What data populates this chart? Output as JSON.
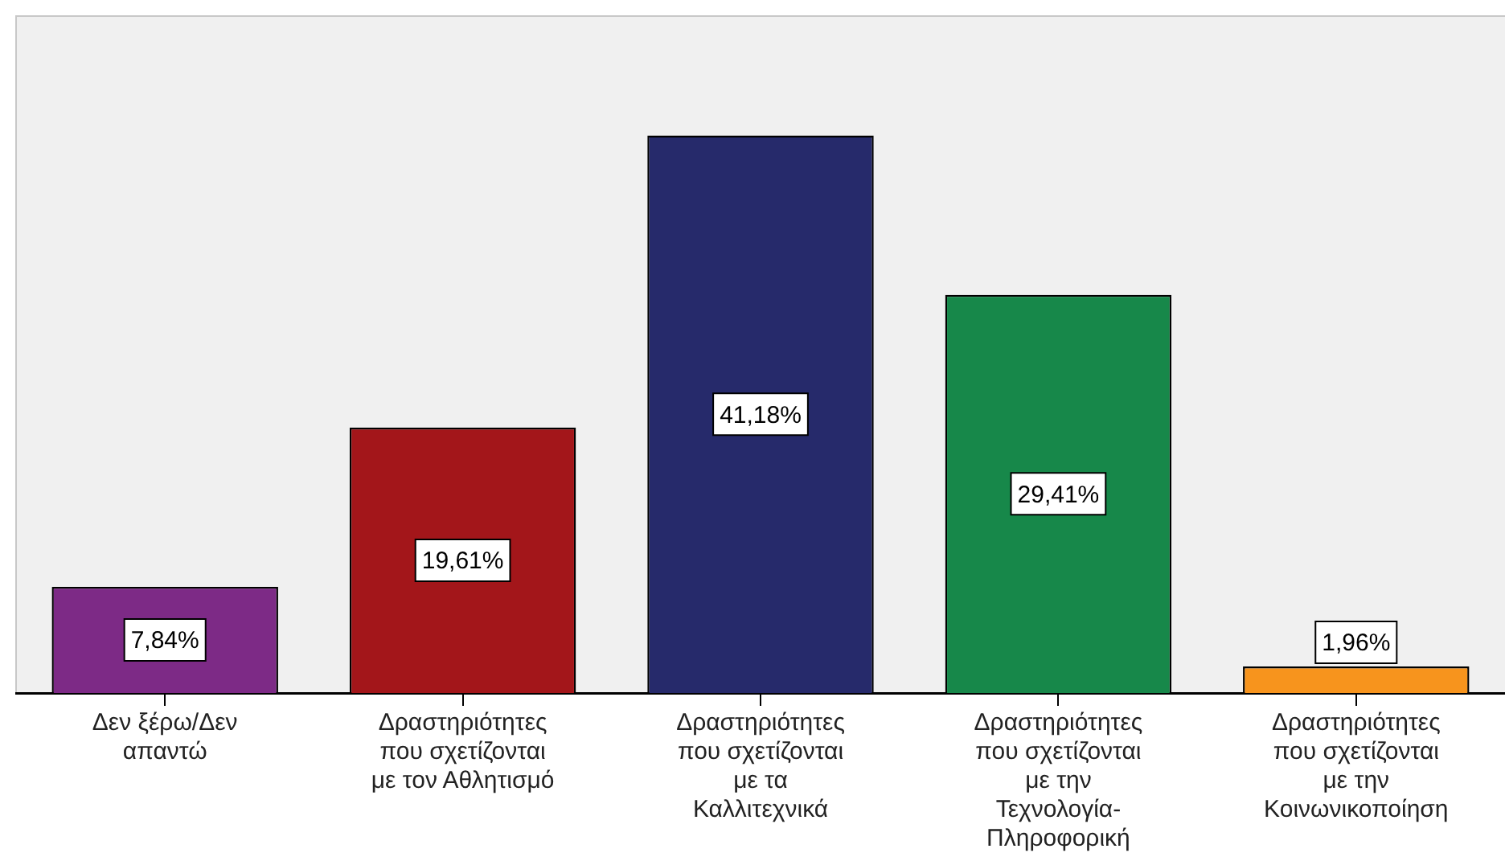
{
  "chart_data": {
    "type": "bar",
    "categories": [
      "Δεν ξέρω/Δεν απαντώ",
      "Δραστηριότητες που σχετίζονται με τον Αθλητισμό",
      "Δραστηριότητες που σχετίζονται με τα Καλλιτεχνικά",
      "Δραστηριότητες που σχετίζονται με την Τεχνολογία-Πληροφορική",
      "Δραστηριότητες που σχετίζονται με την Κοινωνικοποίηση"
    ],
    "values": [
      7.84,
      19.61,
      41.18,
      29.41,
      1.96
    ],
    "colors": [
      "#7d2a86",
      "#a3161a",
      "#262a6b",
      "#17884a",
      "#f7941d"
    ],
    "value_labels": [
      "7,84%",
      "19,61%",
      "41,18%",
      "29,41%",
      "1,96%"
    ],
    "ylim": [
      0,
      50
    ],
    "tick_labels": "x",
    "legend": false
  }
}
